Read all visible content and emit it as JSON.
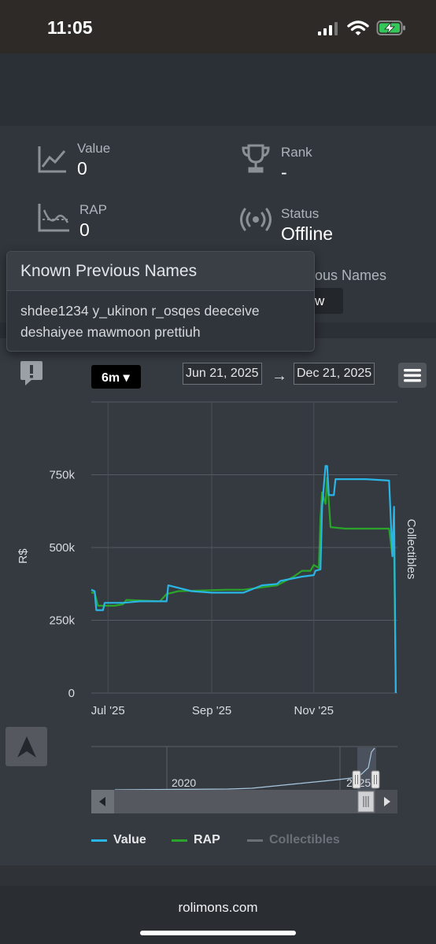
{
  "status_bar": {
    "time": "11:05"
  },
  "stats": {
    "value": {
      "label": "Value",
      "value": "0"
    },
    "rank": {
      "label": "Rank",
      "value": "-"
    },
    "rap": {
      "label": "RAP",
      "value": "0"
    },
    "status": {
      "label": "Status",
      "value": "Offline"
    },
    "behind_popover_label": "ious Names",
    "behind_popover_button": "w"
  },
  "popover": {
    "title": "Known Previous Names",
    "names_line1": "shdee1234 y_ukinon r_osqes deeceive",
    "names_line2": "deshaiyee mawmoon prettiuh"
  },
  "chart_controls": {
    "range_button": "6m ▾",
    "date_from": "Jun 21, 2025",
    "arrow": "→",
    "date_to": "Dec 21, 2025"
  },
  "chart_data": {
    "type": "line",
    "xlabel": "",
    "ylabel": "R$",
    "y2label": "Collectibles",
    "ylim": [
      0,
      1000000
    ],
    "yticks": [
      "0",
      "250k",
      "500k",
      "750k"
    ],
    "xticks": [
      "Jul '25",
      "Sep '25",
      "Nov '25"
    ],
    "x_domain": [
      "2025-06-21",
      "2025-12-21"
    ],
    "series": [
      {
        "name": "Value",
        "color": "#29b6e6",
        "points": [
          [
            "2025-06-21",
            355000
          ],
          [
            "2025-06-23",
            350000
          ],
          [
            "2025-06-24",
            285000
          ],
          [
            "2025-06-28",
            285000
          ],
          [
            "2025-06-29",
            310000
          ],
          [
            "2025-07-10",
            310000
          ],
          [
            "2025-07-20",
            315000
          ],
          [
            "2025-08-05",
            315000
          ],
          [
            "2025-08-06",
            370000
          ],
          [
            "2025-08-20",
            350000
          ],
          [
            "2025-09-01",
            345000
          ],
          [
            "2025-09-20",
            345000
          ],
          [
            "2025-10-01",
            370000
          ],
          [
            "2025-10-10",
            375000
          ],
          [
            "2025-10-12",
            385000
          ],
          [
            "2025-10-25",
            400000
          ],
          [
            "2025-11-01",
            405000
          ],
          [
            "2025-11-02",
            420000
          ],
          [
            "2025-11-05",
            425000
          ],
          [
            "2025-11-06",
            640000
          ],
          [
            "2025-11-08",
            780000
          ],
          [
            "2025-11-09",
            780000
          ],
          [
            "2025-11-10",
            680000
          ],
          [
            "2025-11-13",
            680000
          ],
          [
            "2025-11-14",
            735000
          ],
          [
            "2025-12-02",
            735000
          ],
          [
            "2025-12-16",
            730000
          ],
          [
            "2025-12-18",
            470000
          ],
          [
            "2025-12-19",
            640000
          ],
          [
            "2025-12-20",
            0
          ]
        ]
      },
      {
        "name": "RAP",
        "color": "#2aa52a",
        "points": [
          [
            "2025-06-21",
            345000
          ],
          [
            "2025-06-23",
            345000
          ],
          [
            "2025-06-25",
            300000
          ],
          [
            "2025-07-05",
            300000
          ],
          [
            "2025-07-10",
            305000
          ],
          [
            "2025-07-12",
            320000
          ],
          [
            "2025-08-01",
            315000
          ],
          [
            "2025-08-05",
            340000
          ],
          [
            "2025-08-12",
            350000
          ],
          [
            "2025-09-10",
            355000
          ],
          [
            "2025-09-20",
            355000
          ],
          [
            "2025-10-10",
            370000
          ],
          [
            "2025-10-20",
            400000
          ],
          [
            "2025-10-25",
            420000
          ],
          [
            "2025-10-30",
            420000
          ],
          [
            "2025-11-01",
            440000
          ],
          [
            "2025-11-04",
            430000
          ],
          [
            "2025-11-05",
            600000
          ],
          [
            "2025-11-06",
            690000
          ],
          [
            "2025-11-08",
            650000
          ],
          [
            "2025-11-09",
            740000
          ],
          [
            "2025-11-11",
            570000
          ],
          [
            "2025-11-20",
            565000
          ],
          [
            "2025-12-16",
            565000
          ],
          [
            "2025-12-18",
            470000
          ],
          [
            "2025-12-19",
            520000
          ],
          [
            "2025-12-20",
            0
          ]
        ]
      },
      {
        "name": "Collectibles",
        "color": "#6b7077",
        "points": []
      }
    ],
    "legend_position": "bottom",
    "grid": true
  },
  "navigator": {
    "labels": [
      "2020",
      "2025"
    ]
  },
  "legend": {
    "value": "Value",
    "rap": "RAP",
    "collectibles": "Collectibles"
  },
  "footer": {
    "domain": "rolimons.com"
  },
  "colors": {
    "value": "#29b6e6",
    "rap": "#2aa52a",
    "collectibles_disabled": "#6b7077"
  }
}
